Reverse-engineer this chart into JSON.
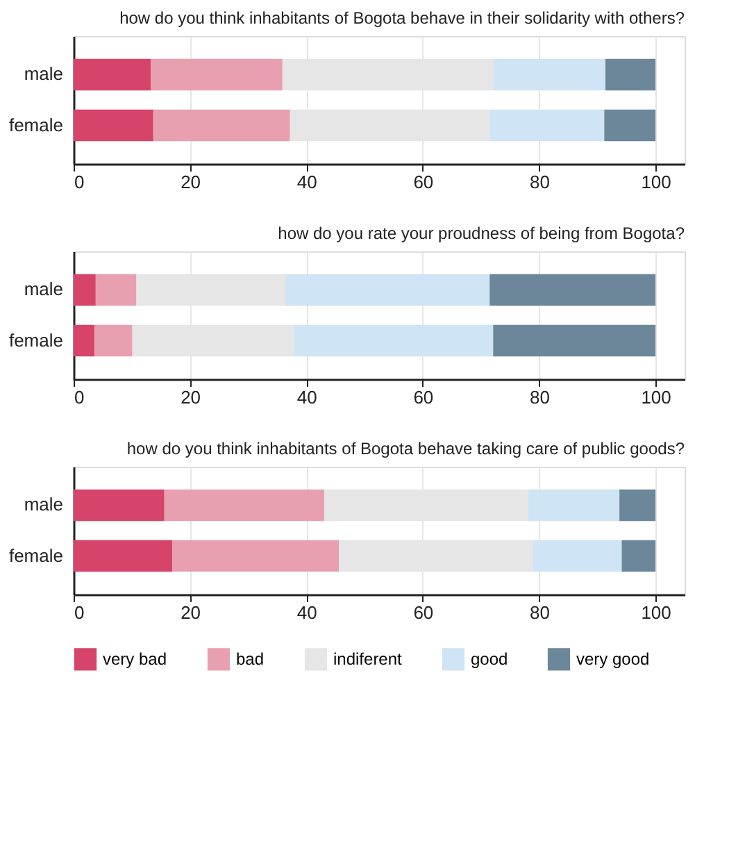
{
  "chart_data": [
    {
      "type": "bar",
      "orientation": "horizontal",
      "stacked": true,
      "title": "how do you think inhabitants of Bogota behave in their solidarity with others?",
      "categories": [
        "male",
        "female"
      ],
      "xlim": [
        0,
        105
      ],
      "xticks": [
        0,
        20,
        40,
        60,
        80,
        100
      ],
      "grid": "x",
      "legend": false,
      "series": [
        {
          "color": "#d6446a",
          "values": [
            13.3,
            13.7
          ]
        },
        {
          "color": "#e8a0b0",
          "values": [
            22.6,
            23.5
          ]
        },
        {
          "color": "#e6e6e6",
          "values": [
            36.2,
            34.3
          ]
        },
        {
          "color": "#cfe4f4",
          "values": [
            19.3,
            19.7
          ]
        },
        {
          "color": "#6c8799",
          "values": [
            8.6,
            8.8
          ]
        }
      ]
    },
    {
      "type": "bar",
      "orientation": "horizontal",
      "stacked": true,
      "title": "how do you rate your proudness of being from Bogota?",
      "categories": [
        "male",
        "female"
      ],
      "xlim": [
        0,
        105
      ],
      "xticks": [
        0,
        20,
        40,
        60,
        80,
        100
      ],
      "grid": "x",
      "legend": false,
      "series": [
        {
          "color": "#d6446a",
          "values": [
            3.8,
            3.6
          ]
        },
        {
          "color": "#e8a0b0",
          "values": [
            7.0,
            6.5
          ]
        },
        {
          "color": "#e6e6e6",
          "values": [
            25.6,
            27.7
          ]
        },
        {
          "color": "#cfe4f4",
          "values": [
            35.1,
            34.3
          ]
        },
        {
          "color": "#6c8799",
          "values": [
            28.5,
            27.9
          ]
        }
      ]
    },
    {
      "type": "bar",
      "orientation": "horizontal",
      "stacked": true,
      "title": "how do you think inhabitants of Bogota behave taking care of public goods?",
      "categories": [
        "male",
        "female"
      ],
      "xlim": [
        0,
        105
      ],
      "xticks": [
        0,
        20,
        40,
        60,
        80,
        100
      ],
      "grid": "x",
      "legend": "bottom",
      "series": [
        {
          "name": "very bad",
          "color": "#d6446a",
          "values": [
            15.6,
            17.0
          ]
        },
        {
          "name": "bad",
          "color": "#e8a0b0",
          "values": [
            27.5,
            28.6
          ]
        },
        {
          "name": "indiferent",
          "color": "#e6e6e6",
          "values": [
            35.0,
            33.3
          ]
        },
        {
          "name": "good",
          "color": "#cfe4f4",
          "values": [
            15.7,
            15.3
          ]
        },
        {
          "name": "very good",
          "color": "#6c8799",
          "values": [
            6.2,
            5.8
          ]
        }
      ]
    }
  ]
}
